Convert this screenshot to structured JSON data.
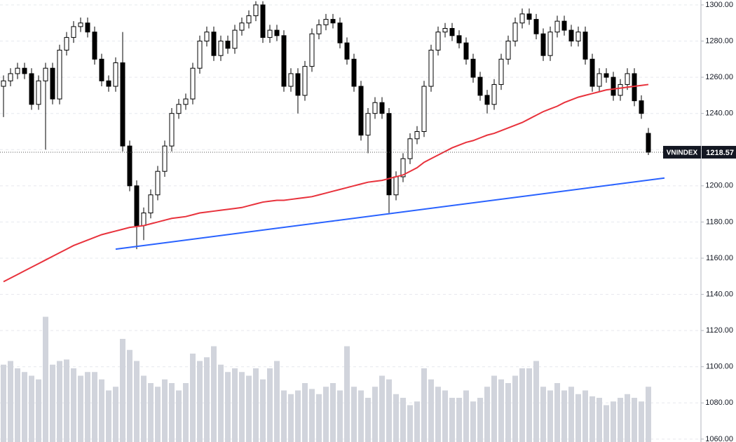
{
  "chart_data": {
    "type": "candlestick",
    "symbol": "VNINDEX",
    "last_price": 1218.57,
    "ylim": [
      1058.4,
      1302.7
    ],
    "yticks": [
      {
        "value": 1060,
        "label": "1060.00"
      },
      {
        "value": 1080,
        "label": "1080.00"
      },
      {
        "value": 1100,
        "label": "1100.00"
      },
      {
        "value": 1120,
        "label": "1120.00"
      },
      {
        "value": 1140,
        "label": "1140.00"
      },
      {
        "value": 1160,
        "label": "1160.00"
      },
      {
        "value": 1180,
        "label": "1180.00"
      },
      {
        "value": 1200,
        "label": "1200.00"
      },
      {
        "value": 1220,
        "label": "1220.00"
      },
      {
        "value": 1240,
        "label": "1240.00"
      },
      {
        "value": 1260,
        "label": "1260.00"
      },
      {
        "value": 1280,
        "label": "1280.00"
      },
      {
        "value": 1300,
        "label": "1300.00"
      }
    ],
    "grid": true,
    "up_color": "#ffffff",
    "down_color": "#000000",
    "volume_color": "#d1d4dc",
    "volume_ylim": [
      0,
      600
    ],
    "open": [
      1255,
      1258,
      1262,
      1265,
      1262,
      1245,
      1258,
      1265,
      1248,
      1275,
      1282,
      1288,
      1290,
      1285,
      1270,
      1258,
      1255,
      1268,
      1222,
      1200,
      1178,
      1185,
      1195,
      1208,
      1222,
      1240,
      1245,
      1248,
      1265,
      1280,
      1285,
      1272,
      1280,
      1276,
      1286,
      1290,
      1294,
      1300,
      1282,
      1286,
      1283,
      1255,
      1262,
      1250,
      1266,
      1284,
      1289,
      1292,
      1290,
      1279,
      1270,
      1255,
      1228,
      1240,
      1246,
      1240,
      1195,
      1205,
      1215,
      1226,
      1230,
      1255,
      1275,
      1285,
      1287,
      1283,
      1279,
      1270,
      1260,
      1250,
      1245,
      1256,
      1270,
      1280,
      1290,
      1295,
      1292,
      1284,
      1272,
      1285,
      1291,
      1286,
      1280,
      1285,
      1270,
      1255,
      1262,
      1260,
      1250,
      1256,
      1262,
      1247,
      1229
    ],
    "high": [
      1261,
      1265,
      1268,
      1268,
      1265,
      1261,
      1268,
      1268,
      1278,
      1285,
      1291,
      1293,
      1293,
      1288,
      1273,
      1261,
      1271,
      1285,
      1225,
      1203,
      1188,
      1198,
      1211,
      1225,
      1243,
      1248,
      1251,
      1268,
      1283,
      1288,
      1288,
      1283,
      1283,
      1289,
      1293,
      1297,
      1302,
      1302,
      1289,
      1289,
      1286,
      1265,
      1265,
      1269,
      1287,
      1292,
      1295,
      1295,
      1293,
      1282,
      1273,
      1258,
      1243,
      1249,
      1249,
      1243,
      1208,
      1218,
      1229,
      1233,
      1258,
      1278,
      1288,
      1290,
      1290,
      1286,
      1282,
      1273,
      1263,
      1253,
      1259,
      1273,
      1283,
      1293,
      1298,
      1298,
      1295,
      1287,
      1288,
      1294,
      1294,
      1289,
      1288,
      1288,
      1273,
      1265,
      1265,
      1263,
      1259,
      1265,
      1265,
      1250,
      1232
    ],
    "low": [
      1238,
      1255,
      1259,
      1259,
      1242,
      1242,
      1220,
      1245,
      1245,
      1272,
      1279,
      1285,
      1282,
      1267,
      1255,
      1252,
      1252,
      1219,
      1197,
      1165,
      1170,
      1182,
      1192,
      1205,
      1219,
      1237,
      1242,
      1245,
      1262,
      1277,
      1269,
      1269,
      1273,
      1273,
      1283,
      1287,
      1291,
      1279,
      1279,
      1280,
      1252,
      1252,
      1240,
      1247,
      1263,
      1281,
      1286,
      1287,
      1276,
      1267,
      1252,
      1225,
      1218,
      1237,
      1237,
      1185,
      1192,
      1202,
      1212,
      1223,
      1227,
      1252,
      1272,
      1282,
      1280,
      1276,
      1267,
      1257,
      1247,
      1240,
      1242,
      1253,
      1267,
      1277,
      1287,
      1289,
      1281,
      1269,
      1269,
      1282,
      1283,
      1277,
      1277,
      1267,
      1252,
      1252,
      1257,
      1247,
      1247,
      1253,
      1244,
      1237,
      1217
    ],
    "close": [
      1258,
      1262,
      1265,
      1262,
      1245,
      1258,
      1265,
      1248,
      1275,
      1282,
      1288,
      1290,
      1285,
      1270,
      1258,
      1255,
      1268,
      1222,
      1200,
      1178,
      1185,
      1195,
      1208,
      1222,
      1240,
      1245,
      1248,
      1265,
      1280,
      1285,
      1272,
      1280,
      1276,
      1286,
      1290,
      1294,
      1300,
      1282,
      1286,
      1283,
      1255,
      1262,
      1250,
      1266,
      1284,
      1289,
      1292,
      1290,
      1279,
      1270,
      1255,
      1228,
      1240,
      1246,
      1240,
      1195,
      1205,
      1215,
      1226,
      1230,
      1255,
      1275,
      1285,
      1287,
      1283,
      1279,
      1270,
      1260,
      1250,
      1245,
      1256,
      1270,
      1280,
      1290,
      1295,
      1292,
      1284,
      1272,
      1285,
      1291,
      1286,
      1280,
      1285,
      1270,
      1255,
      1262,
      1260,
      1250,
      1256,
      1262,
      1247,
      1240,
      1218.57
    ],
    "volume": [
      105,
      110,
      100,
      95,
      90,
      85,
      170,
      105,
      110,
      112,
      100,
      90,
      95,
      95,
      85,
      70,
      75,
      140,
      125,
      110,
      90,
      80,
      75,
      85,
      80,
      70,
      80,
      120,
      110,
      115,
      130,
      105,
      95,
      100,
      95,
      90,
      100,
      85,
      100,
      110,
      70,
      65,
      70,
      80,
      72,
      65,
      75,
      80,
      70,
      130,
      75,
      70,
      60,
      75,
      90,
      85,
      65,
      60,
      50,
      55,
      100,
      85,
      75,
      70,
      60,
      60,
      70,
      55,
      60,
      75,
      90,
      85,
      80,
      90,
      100,
      100,
      110,
      75,
      70,
      80,
      70,
      75,
      65,
      70,
      62,
      60,
      50,
      55,
      60,
      65,
      60,
      55,
      75
    ],
    "moving_average": {
      "color": "#e8323c",
      "values": [
        1147,
        1149,
        1151,
        1153,
        1155,
        1157,
        1159,
        1161,
        1163,
        1165,
        1167,
        1168.5,
        1170,
        1171.5,
        1173,
        1174,
        1175,
        1176,
        1177,
        1177.5,
        1178,
        1179,
        1180,
        1181,
        1182,
        1182.5,
        1183,
        1184,
        1185,
        1185.5,
        1186,
        1186.5,
        1187,
        1187.5,
        1188,
        1189,
        1190,
        1191,
        1191.5,
        1192,
        1192,
        1192.5,
        1193,
        1193.5,
        1194,
        1195,
        1196,
        1197,
        1198,
        1199,
        1200,
        1201,
        1202,
        1202.5,
        1203,
        1204,
        1205,
        1206,
        1208,
        1210,
        1213,
        1215,
        1217,
        1219,
        1221,
        1222.5,
        1224,
        1225,
        1226.5,
        1228,
        1229,
        1230.5,
        1232,
        1233.5,
        1235,
        1237,
        1239,
        1241,
        1242.5,
        1244,
        1246,
        1247.5,
        1249,
        1250,
        1251,
        1252,
        1253,
        1253.5,
        1254,
        1254.5,
        1255,
        1255.5,
        1256
      ]
    },
    "trend_line": {
      "color": "#2962ff",
      "x": [
        16,
        94.3
      ],
      "values": [
        1165,
        1204.3
      ]
    }
  }
}
